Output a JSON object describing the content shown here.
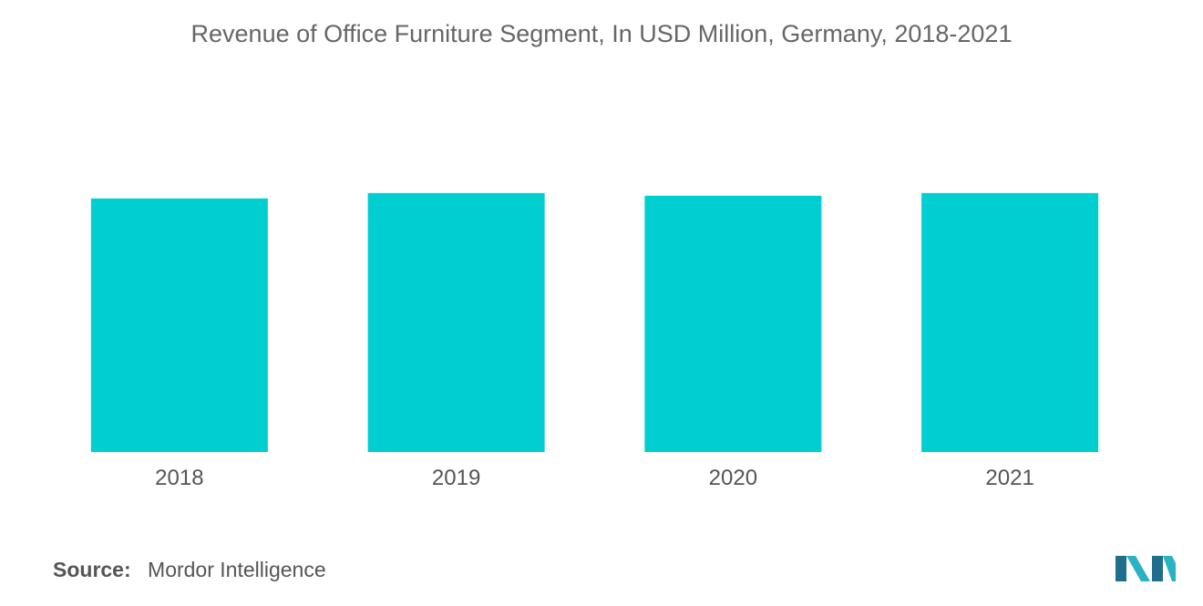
{
  "chart_data": {
    "type": "bar",
    "title": "Revenue of Office Furniture Segment, In USD Million, Germany, 2018-2021",
    "xlabel": "",
    "ylabel": "",
    "categories": [
      "2018",
      "2019",
      "2020",
      "2021"
    ],
    "values": [
      94,
      96,
      95,
      96
    ],
    "ylim": [
      0,
      100
    ],
    "grid": false,
    "bar_color": "#00CED1"
  },
  "source": {
    "label": "Source:",
    "text": "Mordor Intelligence"
  },
  "colors": {
    "logo_dark": "#1F6E8C",
    "logo_light": "#27B2C6"
  }
}
